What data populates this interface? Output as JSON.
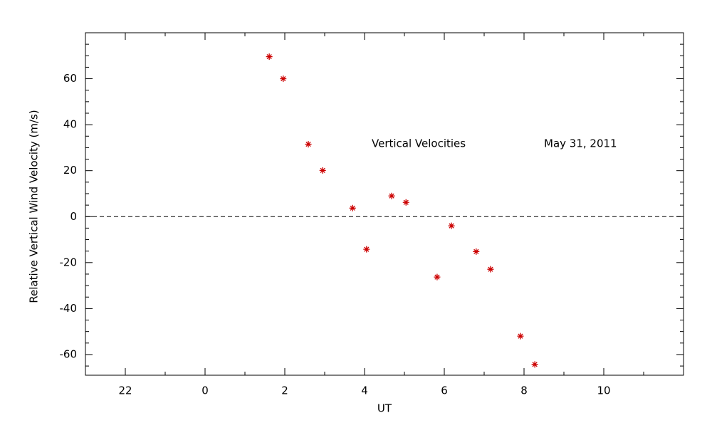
{
  "chart_data": {
    "type": "scatter",
    "x_label": "UT",
    "y_label": "Relative Vertical Wind Velocity (m/s)",
    "annotations": [
      "Vertical Velocities",
      "May 31, 2011"
    ],
    "x": [
      1.61,
      1.96,
      2.59,
      2.95,
      3.7,
      4.05,
      4.68,
      5.04,
      5.82,
      6.18,
      6.8,
      7.16,
      7.91,
      8.27
    ],
    "series": [
      {
        "color": "#cc0000",
        "values": [
          69.6,
          60,
          31.5,
          20.1,
          3.7,
          -14.2,
          9.0,
          6.2,
          -26.3,
          -4.0,
          -15.2,
          -22.9,
          -52.0,
          -64.3
        ]
      }
    ],
    "xlim": [
      -3,
      12
    ],
    "xticks": [
      {
        "value": -2,
        "label": "22"
      },
      0,
      2,
      4,
      6,
      8,
      10
    ],
    "ylim": [
      -69,
      80
    ],
    "yticks": [
      -60,
      -40,
      -20,
      0,
      20,
      40,
      60
    ],
    "reference_line": 0,
    "x_minor": 2,
    "y_minor": 4
  }
}
